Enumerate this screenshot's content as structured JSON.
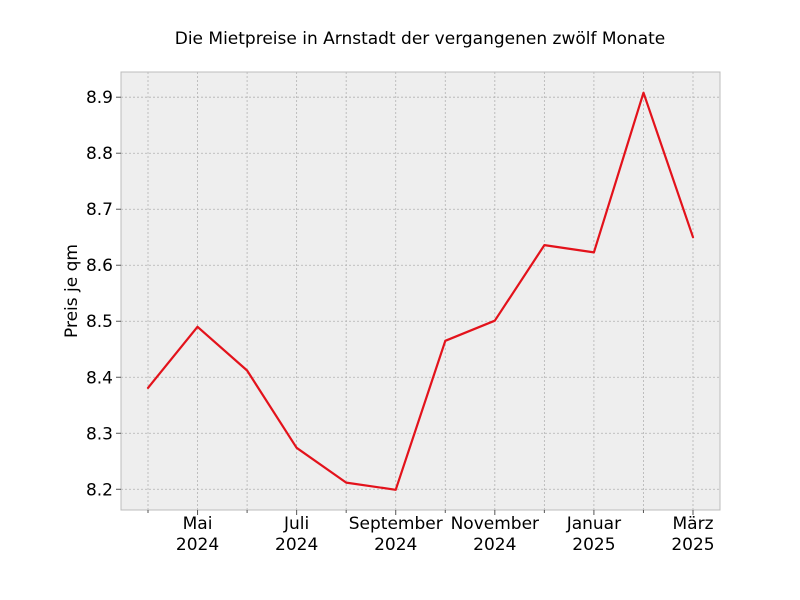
{
  "chart_data": {
    "type": "line",
    "title": "Die Mietpreise in Arnstadt der vergangenen zwölf Monate",
    "ylabel": "Preis je qm",
    "xlabel": "",
    "x": [
      "2024-04",
      "2024-05",
      "2024-06",
      "2024-07",
      "2024-08",
      "2024-09",
      "2024-10",
      "2024-11",
      "2024-12",
      "2025-01",
      "2025-02",
      "2025-03"
    ],
    "x_tick_labels": [
      {
        "month": "Mai",
        "year": "2024"
      },
      {
        "month": "Juli",
        "year": "2024"
      },
      {
        "month": "September",
        "year": "2024"
      },
      {
        "month": "November",
        "year": "2024"
      },
      {
        "month": "Januar",
        "year": "2025"
      },
      {
        "month": "März",
        "year": "2025"
      }
    ],
    "series": [
      {
        "values": [
          8.381,
          8.49,
          8.412,
          8.274,
          8.212,
          8.199,
          8.465,
          8.501,
          8.636,
          8.623,
          8.908,
          8.65
        ],
        "color": "#e3121b"
      }
    ],
    "ylim": [
      8.163,
      8.945
    ],
    "yticks": [
      8.2,
      8.3,
      8.4,
      8.5,
      8.6,
      8.7,
      8.8,
      8.9
    ],
    "grid": true,
    "background": "#eeeeee"
  }
}
